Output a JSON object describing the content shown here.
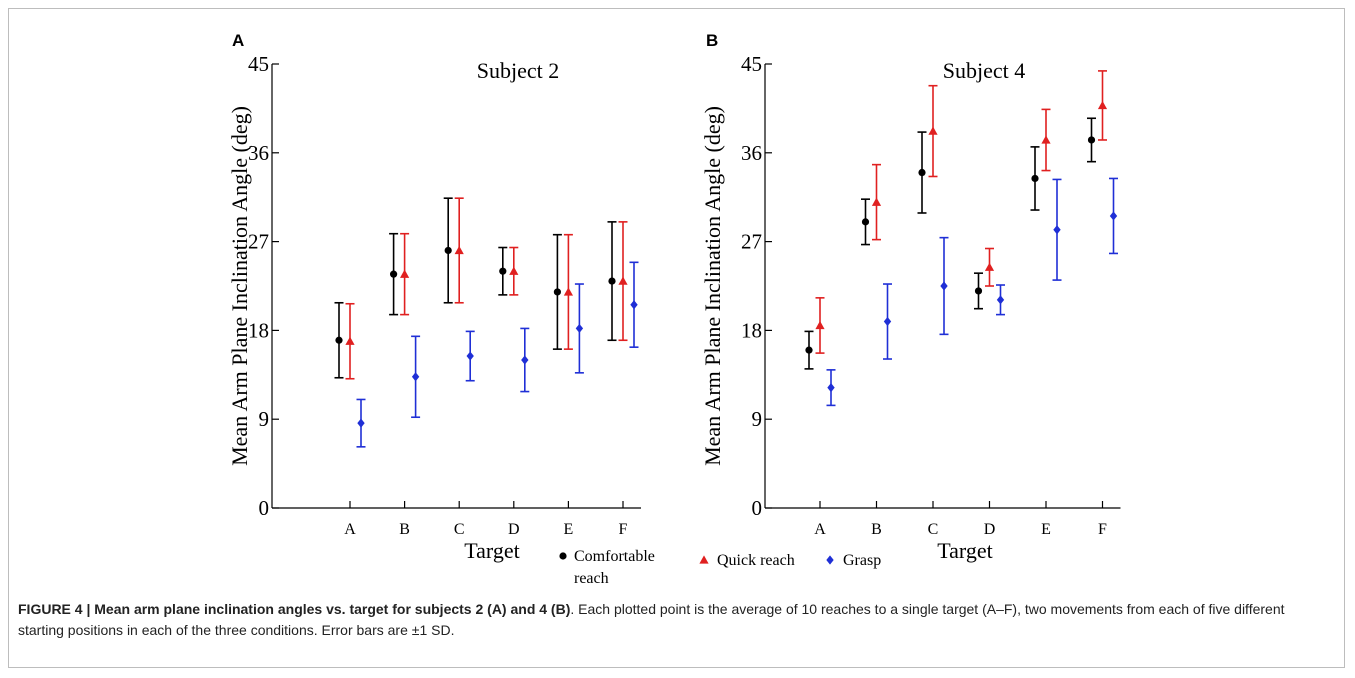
{
  "caption": {
    "title": "FIGURE 4 | Mean arm plane inclination angles vs. target for subjects 2 (A) and 4 (B)",
    "text": ". Each plotted point is the average of 10 reaches to a single target (A–F), two movements from each of five different starting positions in each of the three conditions. Error bars are ±1 SD."
  },
  "chart_data": [
    {
      "type": "scatter",
      "panel": "A",
      "title": "Subject 2",
      "xlabel": "Target",
      "ylabel": "Mean Arm Plane Inclination Angle (deg)",
      "categories": [
        "A",
        "B",
        "C",
        "D",
        "E",
        "F"
      ],
      "ylim": [
        0,
        45
      ],
      "yticks": [
        "0",
        "9",
        "18",
        "27",
        "36",
        "45"
      ],
      "grid": false,
      "series": [
        {
          "name": "Comfortable reach",
          "color": "#000000",
          "marker": "circle",
          "values": [
            17.0,
            23.7,
            26.1,
            24.0,
            21.9,
            23.0
          ],
          "sd": [
            3.8,
            4.1,
            5.3,
            2.4,
            5.8,
            6.0
          ]
        },
        {
          "name": "Quick reach",
          "color": "#e02020",
          "marker": "triangle",
          "values": [
            16.9,
            23.7,
            26.1,
            24.0,
            21.9,
            23.0
          ],
          "sd": [
            3.8,
            4.1,
            5.3,
            2.4,
            5.8,
            6.0
          ]
        },
        {
          "name": "Grasp",
          "color": "#1f2fd6",
          "marker": "diamond",
          "values": [
            8.6,
            13.3,
            15.4,
            15.0,
            18.2,
            20.6
          ],
          "sd": [
            2.4,
            4.1,
            2.5,
            3.2,
            4.5,
            4.3
          ]
        }
      ]
    },
    {
      "type": "scatter",
      "panel": "B",
      "title": "Subject 4",
      "xlabel": "Target",
      "ylabel": "Mean Arm Plane Inclination Angle (deg)",
      "categories": [
        "A",
        "B",
        "C",
        "D",
        "E",
        "F"
      ],
      "ylim": [
        0,
        45
      ],
      "yticks": [
        "0",
        "9",
        "18",
        "27",
        "36",
        "45"
      ],
      "grid": false,
      "series": [
        {
          "name": "Comfortable reach",
          "color": "#000000",
          "marker": "circle",
          "values": [
            16.0,
            29.0,
            34.0,
            22.0,
            33.4,
            37.3
          ],
          "sd": [
            1.9,
            2.3,
            4.1,
            1.8,
            3.2,
            2.2
          ]
        },
        {
          "name": "Quick reach",
          "color": "#e02020",
          "marker": "triangle",
          "values": [
            18.5,
            31.0,
            38.2,
            24.4,
            37.3,
            40.8
          ],
          "sd": [
            2.8,
            3.8,
            4.6,
            1.9,
            3.1,
            3.5
          ]
        },
        {
          "name": "Grasp",
          "color": "#1f2fd6",
          "marker": "diamond",
          "values": [
            12.2,
            18.9,
            22.5,
            21.1,
            28.2,
            29.6
          ],
          "sd": [
            1.8,
            3.8,
            4.9,
            1.5,
            5.1,
            3.8
          ]
        }
      ]
    }
  ],
  "legend": {
    "placement": "bottom-center",
    "items": [
      {
        "line1": "Comfortable",
        "line2": "reach",
        "color": "#000000",
        "marker": "circle"
      },
      {
        "line1": "Quick reach",
        "line2": "",
        "color": "#e02020",
        "marker": "triangle"
      },
      {
        "line1": "Grasp",
        "line2": "",
        "color": "#1f2fd6",
        "marker": "diamond"
      }
    ]
  }
}
